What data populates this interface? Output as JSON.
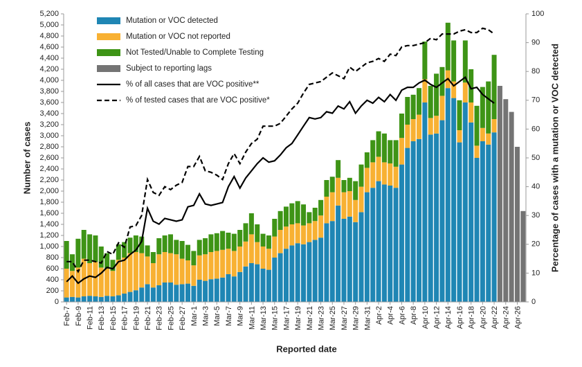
{
  "chart_data": {
    "type": "bar",
    "stacked": true,
    "x_label": "Reported date",
    "y_label": "Number of cases",
    "y2_label": "Percentage of cases with a mutation or VOC detected",
    "categories": [
      "Feb-7",
      null,
      "Feb-9",
      null,
      "Feb-11",
      null,
      "Feb-13",
      null,
      "Feb-15",
      null,
      "Feb-17",
      null,
      "Feb-19",
      null,
      "Feb-21",
      null,
      "Feb-23",
      null,
      "Feb-25",
      null,
      "Feb-27",
      null,
      "Mar-1",
      null,
      "Mar-3",
      null,
      "Mar-5",
      null,
      "Mar-7",
      null,
      "Mar-9",
      null,
      "Mar-11",
      null,
      "Mar-13",
      null,
      "Mar-15",
      null,
      "Mar-17",
      null,
      "Mar-19",
      null,
      "Mar-21",
      null,
      "Mar-23",
      null,
      "Mar-25",
      null,
      "Mar-27",
      null,
      "Mar-29",
      null,
      "Mar-31",
      null,
      "Apr-2",
      null,
      "Apr-4",
      null,
      "Apr-6",
      null,
      "Apr-8",
      null,
      "Apr-10",
      null,
      "Apr-12",
      null,
      "Apr-14",
      null,
      "Apr-16",
      null,
      "Apr-18",
      null,
      "Apr-20",
      null,
      "Apr-22",
      null,
      "Apr-24",
      null,
      "Apr-26",
      null
    ],
    "ylim": [
      0,
      5200
    ],
    "yticks": [
      0,
      200,
      400,
      600,
      800,
      {
        "value": 1000,
        "label": "1,000"
      },
      {
        "value": 1200,
        "label": "1,200"
      },
      {
        "value": 1400,
        "label": "1,400"
      },
      {
        "value": 1600,
        "label": "1,600"
      },
      {
        "value": 1800,
        "label": "1,800"
      },
      {
        "value": 2000,
        "label": "2,000"
      },
      {
        "value": 2200,
        "label": "2,200"
      },
      {
        "value": 2400,
        "label": "2,400"
      },
      {
        "value": 2600,
        "label": "2,600"
      },
      {
        "value": 2800,
        "label": "2,800"
      },
      {
        "value": 3000,
        "label": "3,000"
      },
      {
        "value": 3200,
        "label": "3,200"
      },
      {
        "value": 3400,
        "label": "3,400"
      },
      {
        "value": 3600,
        "label": "3,600"
      },
      {
        "value": 3800,
        "label": "3,800"
      },
      {
        "value": 4000,
        "label": "4,000"
      },
      {
        "value": 4200,
        "label": "4,200"
      },
      {
        "value": 4400,
        "label": "4,400"
      },
      {
        "value": 4600,
        "label": "4,600"
      },
      {
        "value": 4800,
        "label": "4,800"
      },
      {
        "value": 5000,
        "label": "5,000"
      },
      {
        "value": 5200,
        "label": "5,200"
      }
    ],
    "y2lim": [
      0,
      100
    ],
    "y2ticks": [
      0,
      10,
      20,
      30,
      40,
      50,
      60,
      70,
      80,
      90,
      100
    ],
    "legend": "top-left",
    "series": [
      {
        "name": "Mutation or VOC detected",
        "type": "bar",
        "color": "#1f86b4",
        "values": [
          80,
          90,
          80,
          100,
          110,
          100,
          90,
          110,
          100,
          120,
          150,
          180,
          210,
          260,
          320,
          260,
          300,
          350,
          350,
          310,
          320,
          330,
          290,
          400,
          380,
          410,
          420,
          440,
          500,
          460,
          540,
          640,
          700,
          680,
          600,
          580,
          800,
          880,
          960,
          1020,
          1060,
          1040,
          1080,
          1120,
          1160,
          1420,
          1460,
          1740,
          1500,
          1540,
          1440,
          1620,
          1980,
          2060,
          2180,
          2120,
          2100,
          2060,
          2480,
          2780,
          2900,
          2940,
          3600,
          3020,
          3040,
          3280,
          3860,
          3680,
          2880,
          3600,
          3240,
          2600,
          2900,
          2840,
          3060,
          null,
          null,
          null,
          null,
          null
        ]
      },
      {
        "name": "Mutation or VOC not reported",
        "type": "bar",
        "color": "#f8b133",
        "values": [
          520,
          470,
          540,
          680,
          590,
          620,
          530,
          490,
          460,
          640,
          650,
          700,
          690,
          620,
          500,
          440,
          560,
          550,
          530,
          550,
          460,
          420,
          370,
          440,
          480,
          490,
          500,
          500,
          460,
          460,
          460,
          450,
          520,
          400,
          400,
          380,
          380,
          420,
          400,
          380,
          360,
          340,
          340,
          340,
          400,
          480,
          520,
          500,
          480,
          460,
          400,
          460,
          440,
          460,
          440,
          400,
          400,
          380,
          480,
          420,
          400,
          440,
          420,
          300,
          320,
          440,
          320,
          300,
          220,
          360,
          360,
          220,
          240,
          200,
          240,
          null,
          null,
          null,
          null,
          null
        ]
      },
      {
        "name": "Not Tested/Unable to Complete Testing",
        "type": "bar",
        "color": "#3e9416",
        "values": [
          500,
          300,
          520,
          520,
          520,
          480,
          380,
          280,
          200,
          280,
          280,
          280,
          300,
          300,
          200,
          200,
          290,
          300,
          340,
          260,
          320,
          280,
          260,
          280,
          290,
          320,
          320,
          340,
          290,
          310,
          300,
          330,
          380,
          320,
          230,
          240,
          320,
          340,
          360,
          380,
          400,
          380,
          200,
          240,
          280,
          300,
          280,
          320,
          220,
          240,
          340,
          400,
          280,
          400,
          460,
          520,
          420,
          480,
          440,
          500,
          440,
          480,
          680,
          580,
          760,
          520,
          860,
          740,
          540,
          760,
          600,
          720,
          740,
          940,
          1160,
          null,
          null,
          null,
          null,
          null
        ]
      },
      {
        "name": "Subject to reporting lags",
        "type": "bar",
        "color": "#747474",
        "values": [
          null,
          null,
          null,
          null,
          null,
          null,
          null,
          null,
          null,
          null,
          null,
          null,
          null,
          null,
          null,
          null,
          null,
          null,
          null,
          null,
          null,
          null,
          null,
          null,
          null,
          null,
          null,
          null,
          null,
          null,
          null,
          null,
          null,
          null,
          null,
          null,
          null,
          null,
          null,
          null,
          null,
          null,
          null,
          null,
          null,
          null,
          null,
          null,
          null,
          null,
          null,
          null,
          null,
          null,
          null,
          null,
          null,
          null,
          null,
          null,
          null,
          null,
          null,
          null,
          null,
          null,
          null,
          null,
          null,
          null,
          null,
          null,
          null,
          null,
          null,
          3900,
          3660,
          3430,
          2800,
          1640
        ]
      },
      {
        "name": "% of all cases that are VOC positive**",
        "type": "line",
        "axis": "y2",
        "color": "#000000",
        "dash": false,
        "values": [
          7,
          9,
          6.5,
          8,
          9,
          8.5,
          10,
          12,
          11.5,
          14,
          14.5,
          16.5,
          18,
          21,
          32.5,
          28,
          27,
          29,
          28.5,
          28,
          28.5,
          33,
          33.5,
          37.5,
          34,
          33.5,
          34,
          34.5,
          40,
          43.5,
          39.5,
          43,
          45.5,
          48,
          50,
          48.5,
          49,
          51,
          53.5,
          55,
          58,
          61,
          64,
          63.5,
          64,
          66,
          65.5,
          68,
          67,
          69.5,
          65.5,
          68,
          70,
          69,
          71,
          69.5,
          72,
          70,
          73.5,
          74.5,
          74.5,
          76,
          77,
          75.5,
          74.5,
          76,
          77.5,
          75,
          76.5,
          78,
          74,
          74.5,
          72,
          70.5,
          69,
          null,
          null,
          null,
          null,
          null
        ]
      },
      {
        "name": "% of tested cases that are VOC positive*",
        "type": "line",
        "axis": "y2",
        "color": "#000000",
        "dash": true,
        "values": [
          14,
          14,
          10.5,
          14.5,
          14.5,
          14,
          13.5,
          17.5,
          16.5,
          20.5,
          19,
          26,
          26.5,
          30,
          42.5,
          38,
          37,
          40,
          39,
          40.5,
          41.5,
          47,
          47,
          50.5,
          45.5,
          45,
          44,
          42.5,
          48,
          51.5,
          48,
          52,
          55,
          56.5,
          61,
          61,
          61,
          62,
          64.5,
          67,
          69,
          72.5,
          75.5,
          76,
          76.5,
          78,
          79.5,
          78.5,
          77.5,
          81.5,
          80,
          81.5,
          83,
          83.5,
          84.5,
          83.5,
          86,
          85.5,
          88.5,
          89,
          89,
          89.5,
          90,
          91.5,
          91,
          93,
          93,
          93,
          94,
          94.5,
          93.5,
          93.5,
          95,
          94.5,
          93,
          null,
          null,
          null,
          null,
          null
        ]
      }
    ]
  }
}
